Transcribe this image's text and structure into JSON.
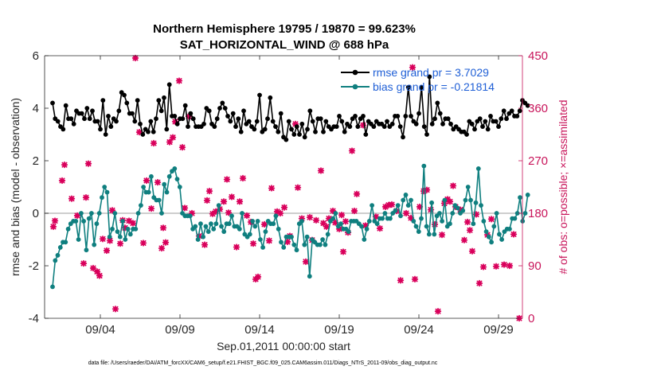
{
  "chart_data": {
    "type": "line",
    "title": "Northern Hemisphere 19795 / 19870 = 99.623%",
    "subtitle": "SAT_HORIZONTAL_WIND @ 688 hPa",
    "xlabel": "Sep.01,2011 00:00:00 start",
    "ylabel": "rmse and bias (model - observation)",
    "y2label": "# of obs: o=possible; ×=assimilated",
    "xticks": [
      "09/04",
      "09/09",
      "09/14",
      "09/19",
      "09/24",
      "09/29"
    ],
    "yticks": [
      "-4",
      "-2",
      "0",
      "2",
      "4",
      "6"
    ],
    "y2ticks": [
      "0",
      "90",
      "180",
      "270",
      "360",
      "450"
    ],
    "xlim": [
      0.5,
      30.5
    ],
    "ylim": [
      -4,
      6
    ],
    "y2lim": [
      0,
      450
    ],
    "footnote": "data file: /Users/raeder/DAI/ATM_forcXX/CAM6_setup/f.e21.FHIST_BGC.f09_025.CAM6assim.011/Diags_NTrS_2011-09/obs_diag_output.nc",
    "colors": {
      "rmse": "#000000",
      "bias": "#0f7f7f",
      "obs": "#d9005b",
      "axis2": "#c8145a",
      "zero": "#bdbdbd",
      "legend_text": "#1f5fd6"
    },
    "series": [
      {
        "name": "rmse grand pr = 3.7029",
        "values": [
          4.2,
          3.6,
          3.5,
          3.3,
          3.2,
          4.1,
          3.6,
          3.6,
          3.4,
          3.9,
          3.8,
          3.8,
          3.6,
          4.0,
          3.6,
          3.9,
          3.5,
          3.5,
          3.2,
          4.3,
          3.0,
          3.7,
          3.3,
          3.6,
          3.5,
          3.9,
          4.6,
          4.5,
          4.2,
          3.8,
          3.8,
          3.5,
          4.3,
          3.4,
          3.0,
          3.2,
          3.1,
          3.5,
          3.1,
          3.6,
          4.3,
          3.9,
          4.4,
          3.2,
          4.9,
          3.7,
          3.7,
          3.4,
          3.6,
          3.6,
          4.1,
          3.3,
          3.8,
          3.6,
          3.3,
          3.3,
          3.3,
          3.4,
          4.0,
          3.9,
          3.4,
          3.3,
          3.6,
          4.0,
          4.2,
          4.0,
          3.7,
          3.5,
          3.8,
          3.3,
          3.6,
          3.1,
          3.9,
          3.4,
          3.5,
          3.3,
          3.2,
          3.5,
          4.5,
          3.1,
          3.2,
          3.6,
          4.4,
          3.5,
          3.3,
          3.1,
          3.8,
          2.9,
          2.8,
          3.5,
          3.2,
          3.0,
          3.3,
          3.0,
          3.4,
          2.9,
          3.2,
          3.9,
          3.5,
          3.1,
          3.6,
          3.6,
          3.1,
          3.5,
          3.3,
          3.2,
          3.3,
          3.3,
          3.7,
          3.5,
          3.1,
          3.4,
          3.3,
          3.6,
          3.7,
          3.3,
          3.6,
          3.7,
          3.0,
          3.5,
          3.4,
          3.3,
          3.5,
          3.4,
          3.4,
          3.3,
          3.5,
          3.3,
          3.4,
          3.7,
          3.7,
          3.3,
          2.9,
          3.7,
          4.8,
          3.7,
          3.5,
          3.4,
          3.8,
          4.8,
          3.3,
          3.0,
          5.2,
          3.4,
          3.6,
          4.2,
          3.8,
          3.4,
          3.6,
          3.6,
          3.4,
          3.2,
          3.3,
          3.2,
          3.1,
          3.1,
          3.0,
          3.5,
          3.4,
          3.2,
          3.5,
          3.6,
          3.3,
          3.5,
          3.2,
          3.7,
          3.5,
          3.5,
          3.3,
          3.6,
          3.9,
          3.6,
          3.8,
          3.9,
          3.7,
          3.7,
          3.9,
          4.3,
          4.2,
          4.1
        ]
      },
      {
        "name": "bias grand pr = -0.21814",
        "values": [
          -2.8,
          -1.8,
          -1.6,
          -1.3,
          -1.1,
          -1.1,
          -0.6,
          -0.4,
          -0.3,
          -0.3,
          -1.0,
          0.0,
          -0.3,
          -1.4,
          -0.2,
          0.0,
          -1.2,
          -0.4,
          0.0,
          0.6,
          1.0,
          0.8,
          -0.9,
          -0.6,
          0.0,
          -0.7,
          -0.9,
          -0.3,
          -1.0,
          -0.6,
          -0.8,
          -0.6,
          -0.6,
          0.0,
          0.3,
          1.0,
          0.8,
          0.8,
          1.4,
          0.6,
          0.5,
          0.5,
          0.0,
          1.1,
          0.8,
          1.4,
          1.6,
          1.7,
          1.3,
          1.0,
          0.0,
          -0.1,
          -0.1,
          -0.1,
          -0.6,
          -0.5,
          -1.0,
          -0.4,
          -0.9,
          -0.5,
          -0.7,
          -0.4,
          -0.6,
          -0.4,
          0.3,
          -0.5,
          -0.7,
          -0.4,
          -0.4,
          -0.1,
          -0.5,
          -0.5,
          -0.6,
          0.0,
          -0.8,
          -0.9,
          -0.8,
          -0.3,
          -0.5,
          -0.3,
          -1.0,
          -1.3,
          -0.7,
          -0.3,
          -0.4,
          -0.4,
          -0.1,
          -0.6,
          -1.1,
          -1.3,
          -0.9,
          -0.9,
          -0.9,
          -1.2,
          -1.4,
          -0.4,
          -0.3,
          -1.2,
          -0.9,
          -2.4,
          -1.0,
          -1.1,
          -1.2,
          -1.2,
          -1.0,
          -1.2,
          -0.8,
          -0.3,
          -0.2,
          0.0,
          -0.5,
          -0.4,
          -0.6,
          -0.6,
          -0.7,
          -0.3,
          -0.3,
          -0.3,
          -0.4,
          -0.5,
          -1.0,
          -0.6,
          -0.3,
          0.3,
          -0.3,
          -0.4,
          -0.2,
          -0.2,
          0.0,
          -0.2,
          -0.2,
          0.0,
          0.1,
          0.3,
          -0.1,
          0.5,
          0.7,
          0.3,
          0.5,
          -0.3,
          -0.5,
          -0.7,
          -0.2,
          1.8,
          -0.5,
          -0.8,
          0.4,
          -0.8,
          -0.1,
          0.0,
          -0.3,
          0.5,
          -0.5,
          -0.4,
          0.0,
          0.3,
          0.2,
          0.0,
          0.1,
          0.5,
          1.0,
          0.5,
          -0.4,
          0.4,
          1.7,
          0.3,
          -0.3,
          -0.7,
          -0.9,
          -1.1,
          -0.5,
          0.0,
          -0.8,
          -1.0,
          -0.7,
          -0.6,
          -0.6,
          -0.2,
          -0.2,
          0.0,
          0.6,
          -0.3,
          0.0,
          0.7
        ]
      }
    ],
    "obs_assimilated": [
      [
        1.05,
        157
      ],
      [
        1.15,
        167
      ],
      [
        1.6,
        236
      ],
      [
        1.75,
        263
      ],
      [
        2.2,
        205
      ],
      [
        2.55,
        176
      ],
      [
        2.95,
        94
      ],
      [
        3.1,
        207
      ],
      [
        3.25,
        265
      ],
      [
        3.55,
        86
      ],
      [
        3.8,
        80
      ],
      [
        3.95,
        73
      ],
      [
        4.15,
        136
      ],
      [
        4.4,
        116
      ],
      [
        4.6,
        133
      ],
      [
        4.75,
        185
      ],
      [
        4.95,
        16
      ],
      [
        5.25,
        128
      ],
      [
        5.4,
        168
      ],
      [
        5.55,
        155
      ],
      [
        5.8,
        167
      ],
      [
        6.05,
        163
      ],
      [
        6.2,
        446
      ],
      [
        6.45,
        319
      ],
      [
        6.7,
        129
      ],
      [
        6.9,
        236
      ],
      [
        7.2,
        188
      ],
      [
        7.35,
        300
      ],
      [
        7.6,
        233
      ],
      [
        7.85,
        120
      ],
      [
        7.95,
        155
      ],
      [
        8.1,
        130
      ],
      [
        8.35,
        302
      ],
      [
        8.55,
        310
      ],
      [
        8.7,
        337
      ],
      [
        8.95,
        407
      ],
      [
        9.15,
        293
      ],
      [
        9.3,
        189
      ],
      [
        9.55,
        346
      ],
      [
        9.75,
        180
      ],
      [
        10.2,
        141
      ],
      [
        10.55,
        126
      ],
      [
        10.7,
        202
      ],
      [
        10.85,
        218
      ],
      [
        11.05,
        179
      ],
      [
        11.25,
        183
      ],
      [
        11.5,
        187
      ],
      [
        11.75,
        200
      ],
      [
        11.95,
        238
      ],
      [
        12.05,
        181
      ],
      [
        12.25,
        208
      ],
      [
        12.55,
        122
      ],
      [
        12.75,
        200
      ],
      [
        12.95,
        240
      ],
      [
        13.2,
        176
      ],
      [
        13.45,
        165
      ],
      [
        13.6,
        128
      ],
      [
        13.75,
        67
      ],
      [
        13.9,
        71
      ],
      [
        14.3,
        161
      ],
      [
        14.6,
        133
      ],
      [
        14.75,
        223
      ],
      [
        15.1,
        183
      ],
      [
        15.3,
        180
      ],
      [
        15.55,
        190
      ],
      [
        15.75,
        131
      ],
      [
        15.9,
        141
      ],
      [
        16.25,
        333
      ],
      [
        16.4,
        224
      ],
      [
        16.65,
        171
      ],
      [
        16.9,
        97
      ],
      [
        17.15,
        173
      ],
      [
        17.3,
        134
      ],
      [
        17.55,
        168
      ],
      [
        17.85,
        253
      ],
      [
        18.0,
        163
      ],
      [
        18.2,
        157
      ],
      [
        18.35,
        171
      ],
      [
        18.6,
        184
      ],
      [
        18.75,
        164
      ],
      [
        19.0,
        153
      ],
      [
        19.15,
        177
      ],
      [
        19.25,
        114
      ],
      [
        19.4,
        166
      ],
      [
        19.55,
        147
      ],
      [
        19.8,
        287
      ],
      [
        19.95,
        184
      ],
      [
        20.1,
        213
      ],
      [
        20.5,
        331
      ],
      [
        20.65,
        159
      ],
      [
        21.3,
        174
      ],
      [
        21.55,
        154
      ],
      [
        21.9,
        191
      ],
      [
        22.1,
        194
      ],
      [
        22.3,
        195
      ],
      [
        22.6,
        184
      ],
      [
        22.85,
        65
      ],
      [
        23.2,
        180
      ],
      [
        23.5,
        172
      ],
      [
        23.6,
        430
      ],
      [
        23.75,
        67
      ],
      [
        24.05,
        191
      ],
      [
        24.3,
        218
      ],
      [
        24.5,
        220
      ],
      [
        24.75,
        186
      ],
      [
        25.0,
        161
      ],
      [
        25.2,
        12
      ],
      [
        25.45,
        143
      ],
      [
        25.6,
        197
      ],
      [
        25.8,
        204
      ],
      [
        25.95,
        200
      ],
      [
        26.15,
        227
      ],
      [
        26.3,
        191
      ],
      [
        26.6,
        186
      ],
      [
        26.85,
        134
      ],
      [
        27.05,
        165
      ],
      [
        27.2,
        151
      ],
      [
        27.35,
        115
      ],
      [
        27.6,
        178
      ],
      [
        27.8,
        60
      ],
      [
        28.05,
        88
      ],
      [
        28.3,
        143
      ],
      [
        28.55,
        170
      ],
      [
        28.85,
        89
      ],
      [
        29.35,
        92
      ],
      [
        29.7,
        90
      ],
      [
        29.95,
        144
      ],
      [
        30.3,
        0
      ]
    ],
    "legend": {
      "placement": "top-right",
      "rmse": "rmse grand pr = 3.7029",
      "bias": "bias grand pr = -0.21814"
    }
  }
}
